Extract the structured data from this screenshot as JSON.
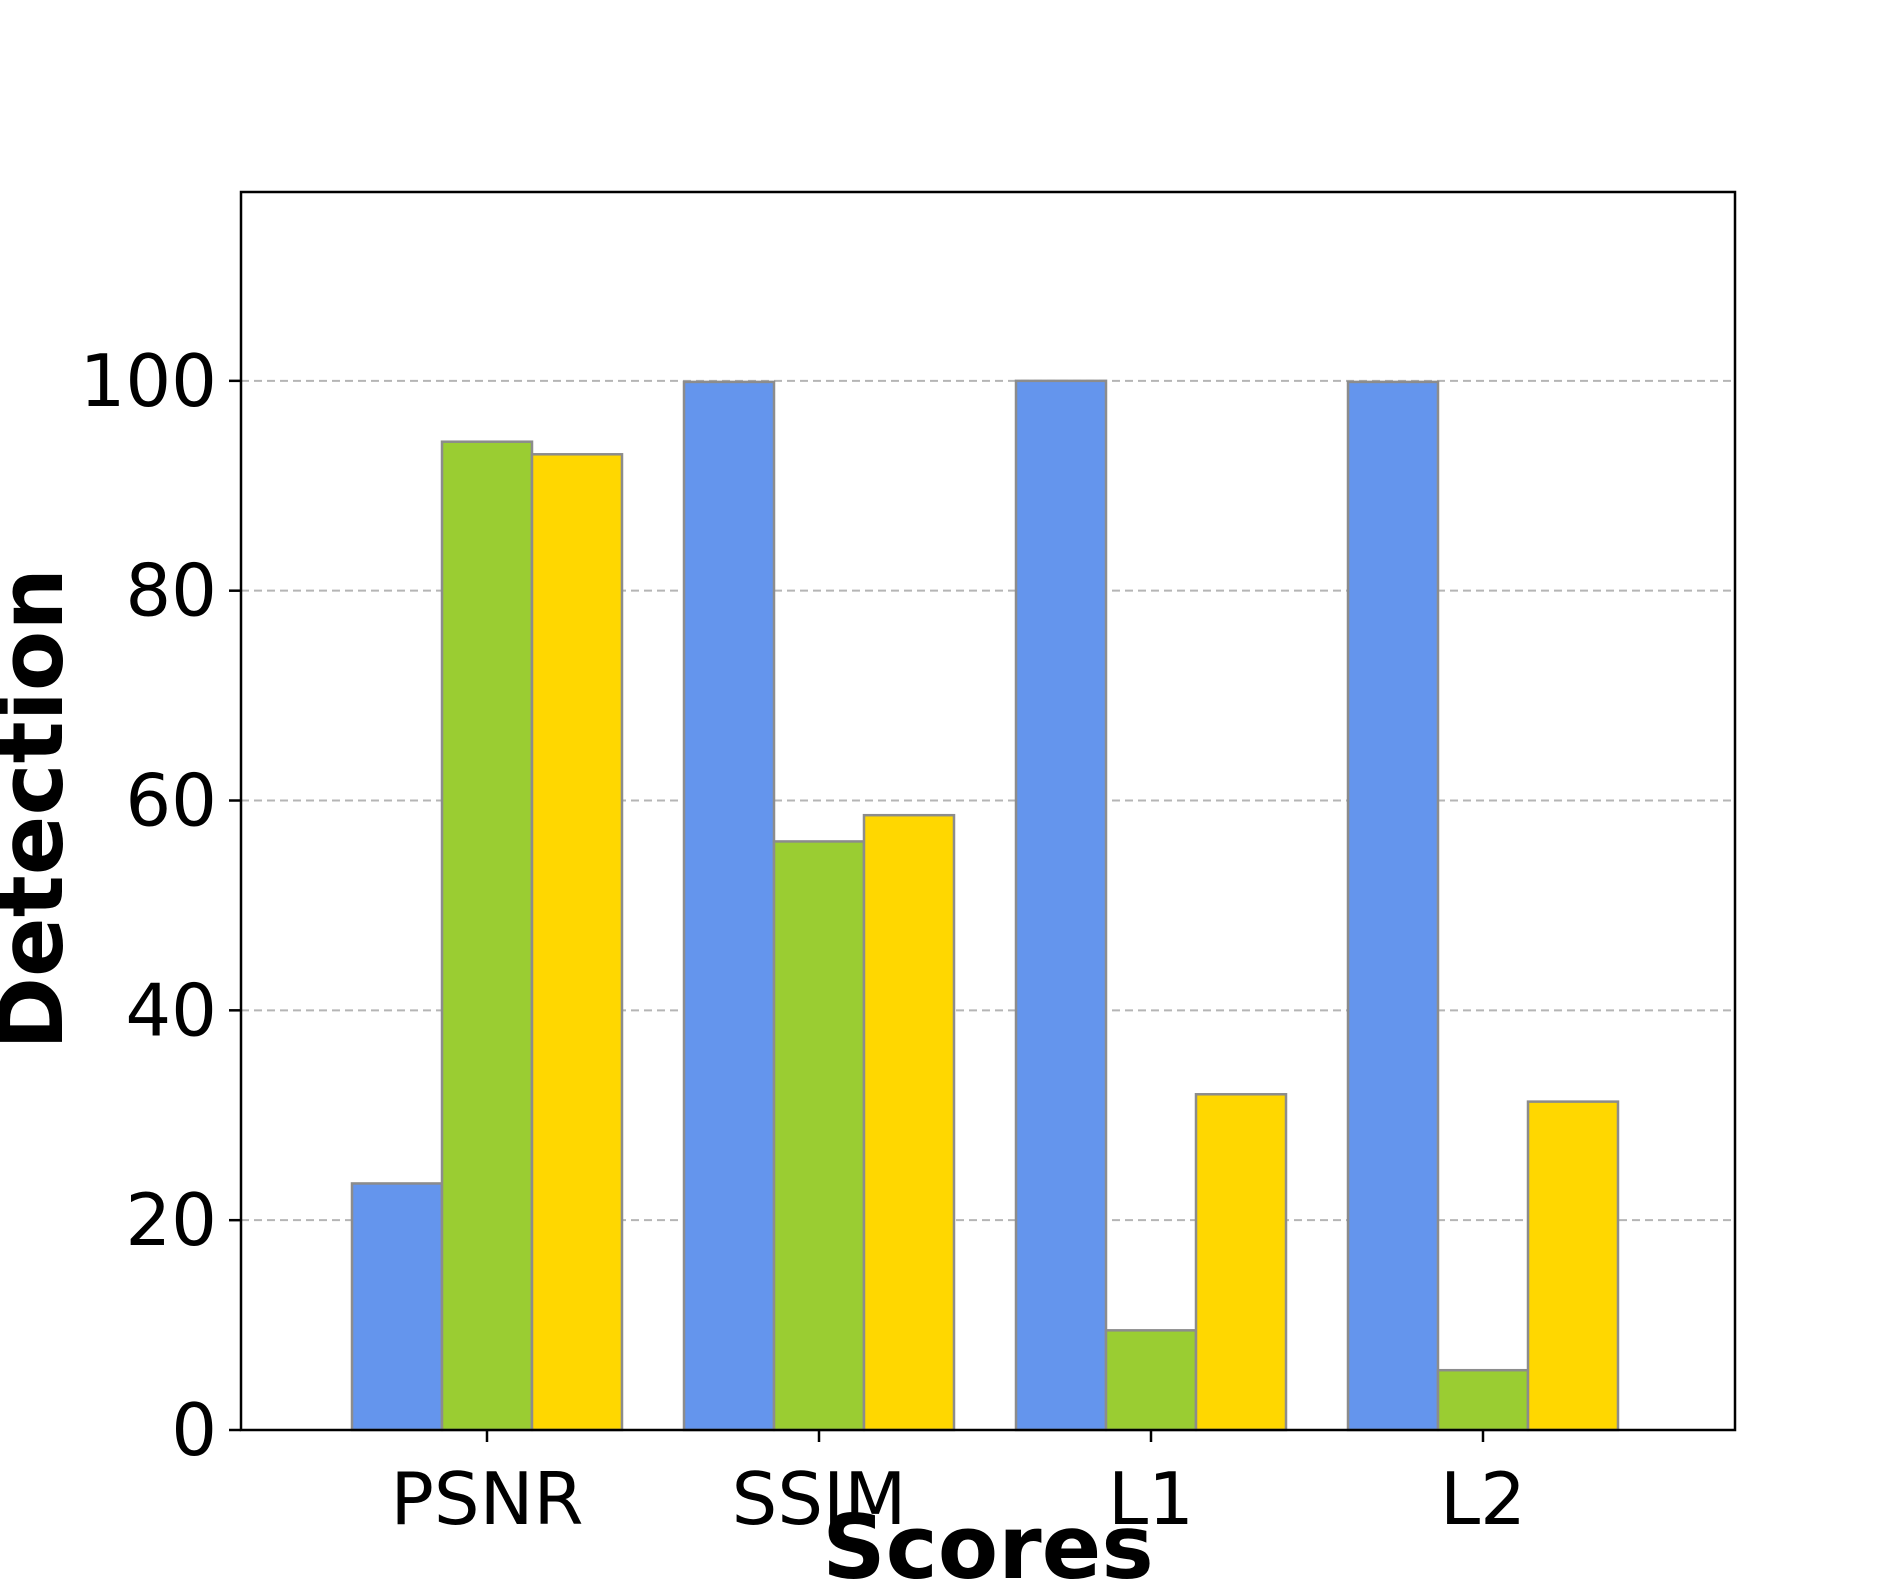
{
  "chart_data": {
    "type": "bar",
    "title": "",
    "xlabel": "Scores",
    "ylabel": "Detection",
    "categories": [
      "PSNR",
      "SSIM",
      "L1",
      "L2"
    ],
    "ylim": [
      0,
      118
    ],
    "yticks": [
      0,
      20,
      40,
      60,
      80,
      100
    ],
    "grid": "horizontal-dashed",
    "legend": "none",
    "series": [
      {
        "color": "#6495ED",
        "values": [
          23.5,
          99.9,
          100.0,
          99.9
        ]
      },
      {
        "color": "#9ACD32",
        "values": [
          94.2,
          56.1,
          9.5,
          5.7
        ]
      },
      {
        "color": "#FFD700",
        "values": [
          93.0,
          58.6,
          32.0,
          31.3
        ]
      }
    ]
  }
}
